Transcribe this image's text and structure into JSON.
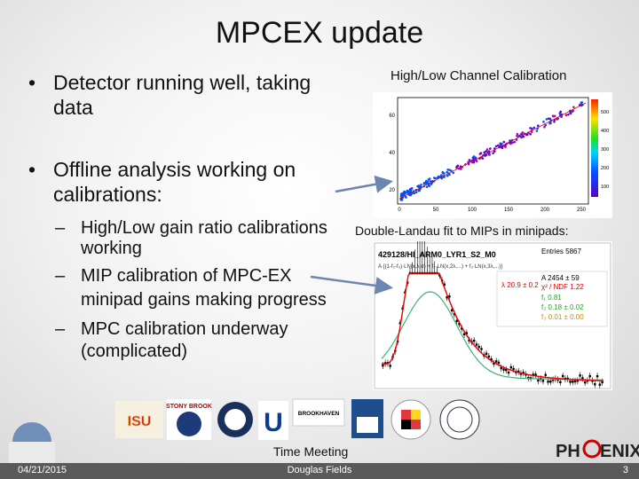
{
  "title": "MPCEX update",
  "bullets": [
    {
      "lines": [
        "Detector running well, taking",
        "data"
      ]
    },
    {
      "lines": [
        "Offline analysis working on",
        "calibrations:"
      ],
      "sub": [
        [
          "High/Low gain ratio calibrations",
          "working"
        ],
        [
          "MIP calibration of MPC-EX",
          "minipad gains making progress"
        ],
        [
          "MPC calibration underway",
          "(complicated)"
        ]
      ]
    }
  ],
  "figures": [
    {
      "caption": "High/Low Channel Calibration",
      "x_ticks": [
        "0",
        "50",
        "100",
        "150",
        "200",
        "250"
      ],
      "y_ticks": [
        "20",
        "40",
        "60"
      ],
      "colorbar": [
        "500",
        "400",
        "300",
        "200",
        "100"
      ]
    },
    {
      "caption": "Double-Landau fit to MIPs in minipads:",
      "plot_title": "429128/HI_ARM0_LYR1_S2_M0",
      "formula": "A·[(1-f₂-f₃)·LN(x,λ,σ) + f₂·LN(x,2λ,...) + f₃·LN(x,3λ,...)]",
      "stats": [
        "Entries 5867",
        "A 2454 ± 59",
        "λ 20.9 ± 0.2",
        "χ² / NDF 1.22",
        "f₁ 0.81",
        "f₂ 0.18 ± 0.02",
        "f₃ 0.01 ± 0.00"
      ]
    }
  ],
  "logos": [
    "STONY BROOK",
    "BROOKHAVEN"
  ],
  "brand": [
    "PH",
    "ENIX"
  ],
  "footer": {
    "event": "Time Meeting",
    "date": "04/21/2015",
    "author": "Douglas Fields",
    "page": "3"
  }
}
